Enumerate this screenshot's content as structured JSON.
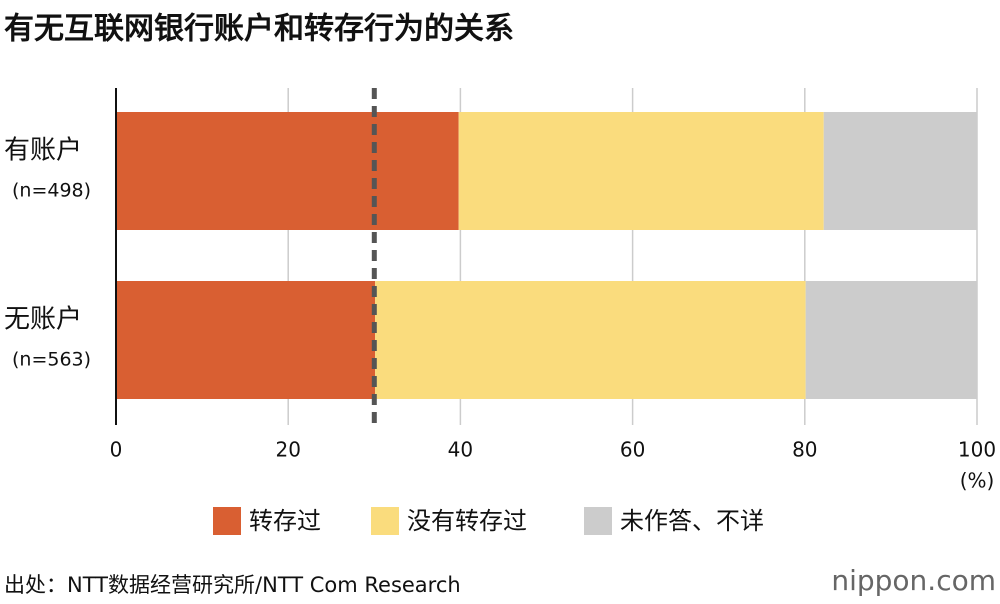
{
  "chart_data": {
    "type": "stacked_barh",
    "title": "有无互联网银行账户和转存行为的关系",
    "categories": [
      "有账户",
      "无账户"
    ],
    "category_sublabels": [
      "(n=498)",
      "(n=563)"
    ],
    "series": [
      {
        "name": "转存过",
        "color": "#d95f32",
        "values": [
          39.8,
          30.1
        ]
      },
      {
        "name": "没有转存过",
        "color": "#fadc7d",
        "values": [
          42.4,
          50.0
        ]
      },
      {
        "name": "未作答、不详",
        "color": "#cccccc",
        "values": [
          17.8,
          19.9
        ]
      }
    ],
    "xlim": [
      0,
      100
    ],
    "xticks": [
      0,
      20,
      40,
      60,
      80,
      100
    ],
    "x_unit": "(%)",
    "grid": true,
    "reference_line": 30,
    "source": "出处：NTT数据经营研究所/NTT Com Research",
    "logo": "nippon.com"
  }
}
